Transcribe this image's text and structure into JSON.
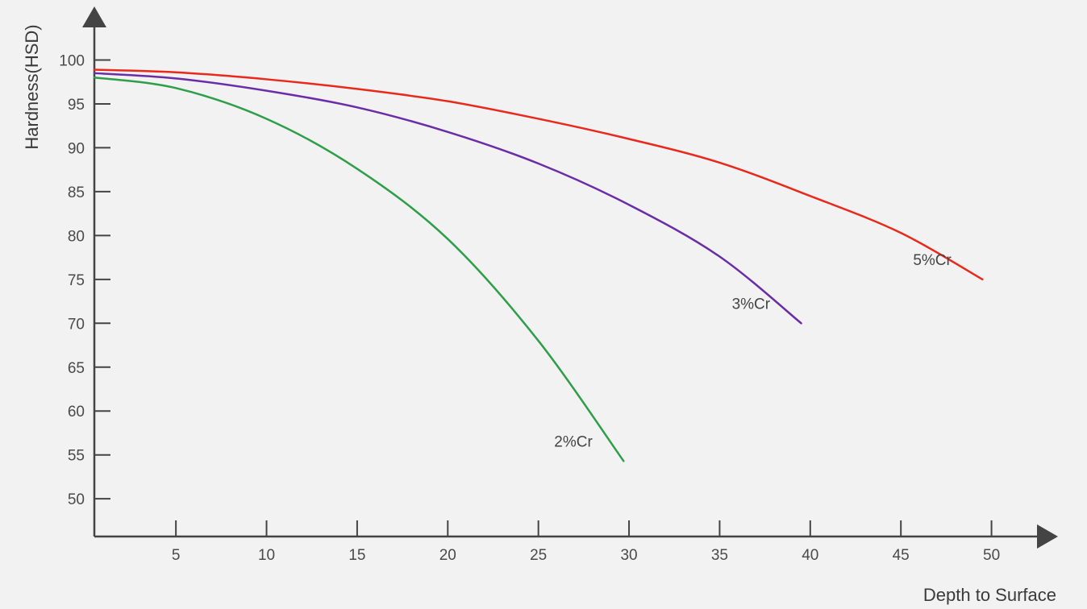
{
  "chart_data": {
    "type": "line",
    "title": "",
    "xlabel": "Depth to Surface",
    "ylabel": "Hardness(HSD)",
    "xlim": [
      0.5,
      53
    ],
    "ylim": [
      45.7,
      105
    ],
    "x_ticks": [
      5,
      10,
      15,
      20,
      25,
      30,
      35,
      40,
      45,
      50
    ],
    "x_tick_labels": [
      "5",
      "10",
      "15",
      "20",
      "25",
      "30",
      "35",
      "40",
      "45",
      "50"
    ],
    "y_ticks": [
      50,
      55,
      60,
      65,
      70,
      75,
      80,
      85,
      90,
      95,
      100
    ],
    "y_tick_labels": [
      "50",
      "55",
      "60",
      "65",
      "70",
      "75",
      "80",
      "85",
      "90",
      "95",
      "100"
    ],
    "grid": false,
    "legend": "none",
    "series": [
      {
        "name": "2%Cr",
        "label": "2%Cr",
        "color": "#2e9e48",
        "x": [
          0.5,
          5,
          10,
          15,
          20,
          25,
          29.7
        ],
        "y": [
          98.0,
          96.8,
          93.3,
          87.6,
          79.6,
          68.0,
          54.3
        ]
      },
      {
        "name": "3%Cr",
        "label": "3%Cr",
        "color": "#6a2da8",
        "x": [
          0.5,
          5,
          10,
          15,
          20,
          25,
          30,
          35,
          39.5
        ],
        "y": [
          98.5,
          97.9,
          96.5,
          94.6,
          91.8,
          88.2,
          83.5,
          77.6,
          70.0
        ]
      },
      {
        "name": "5%Cr",
        "label": "5%Cr",
        "color": "#e8291c",
        "x": [
          0.5,
          5,
          10,
          15,
          20,
          25,
          30,
          35,
          40,
          45,
          49.5
        ],
        "y": [
          98.9,
          98.6,
          97.8,
          96.7,
          95.3,
          93.3,
          91.0,
          88.3,
          84.5,
          80.3,
          75.0
        ]
      }
    ]
  }
}
